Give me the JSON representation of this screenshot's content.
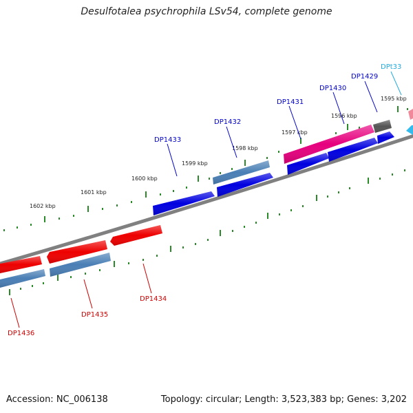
{
  "title": "Desulfotalea psychrophila LSv54, complete genome",
  "footer": {
    "accession": "Accession: NC_006138",
    "summary": "Topology: circular; Length: 3,523,383 bp; Genes: 3,202"
  },
  "scale_labels": [
    "1602 kbp",
    "1601 kbp",
    "1600 kbp",
    "1599 kbp",
    "1598 kbp",
    "1597 kbp",
    "1596 kbp",
    "1595 kbp"
  ],
  "gene_labels": {
    "top": [
      "DP1433",
      "DP1432",
      "DP1431",
      "DP1430",
      "DP1429",
      "DPt33"
    ],
    "bottom": [
      "DP1436",
      "DP1435",
      "DP1434"
    ]
  },
  "colors": {
    "forward_cds": "#0000e0",
    "forward_alt": "#4a7fb5",
    "reverse_cds": "#ee0000",
    "highlight": "#e6007e",
    "trna": "#33bbee",
    "grey": "#555555",
    "backbone": "#808080",
    "ticks": "#228822",
    "label_blue": "#0000cc",
    "label_red": "#cc0000",
    "label_cyan": "#22aadd"
  }
}
